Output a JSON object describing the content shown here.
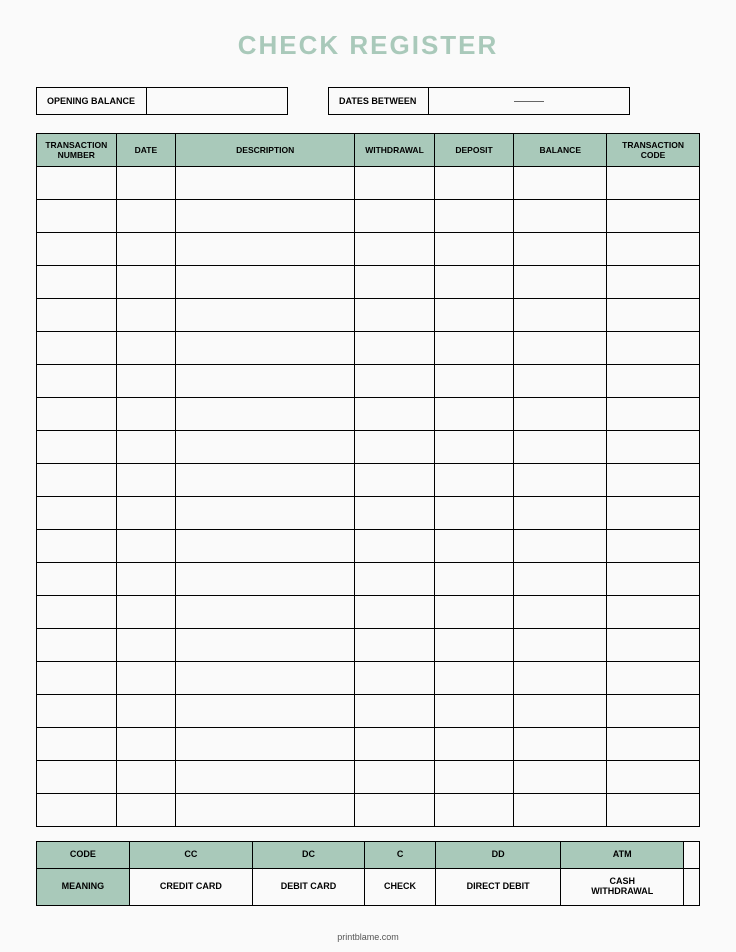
{
  "title": "CHECK REGISTER",
  "colors": {
    "accent": "#a9c9ba",
    "title": "#a9c9ba",
    "border": "#000000",
    "background": "#fafafa",
    "text": "#222222"
  },
  "meta": {
    "opening_balance_label": "OPENING BALANCE",
    "opening_balance_value": "",
    "dates_between_label": "DATES BETWEEN",
    "dates_between_value": ""
  },
  "register_table": {
    "columns": [
      {
        "key": "transaction_number",
        "label": "TRANSACTION NUMBER",
        "width": "12%"
      },
      {
        "key": "date",
        "label": "DATE",
        "width": "9%"
      },
      {
        "key": "description",
        "label": "DESCRIPTION",
        "width": "27%"
      },
      {
        "key": "withdrawal",
        "label": "WITHDRAWAL",
        "width": "12%"
      },
      {
        "key": "deposit",
        "label": "DEPOSIT",
        "width": "12%"
      },
      {
        "key": "balance",
        "label": "BALANCE",
        "width": "14%"
      },
      {
        "key": "transaction_code",
        "label": "TRANSACTION CODE",
        "width": "14%"
      }
    ],
    "row_count": 20,
    "header_bg": "#a9c9ba"
  },
  "legend_table": {
    "row_label_code": "CODE",
    "row_label_meaning": "MEANING",
    "entries": [
      {
        "code": "CC",
        "meaning": "CREDIT CARD"
      },
      {
        "code": "DC",
        "meaning": "DEBIT CARD"
      },
      {
        "code": "C",
        "meaning": "CHECK"
      },
      {
        "code": "DD",
        "meaning": "DIRECT DEBIT"
      },
      {
        "code": "ATM",
        "meaning": "CASH WITHDRAWAL"
      }
    ],
    "label_bg": "#a9c9ba",
    "code_bg": "#a9c9ba",
    "trailing_blank": true
  },
  "layout": {
    "meta_box1_label_width": 110,
    "meta_box1_value_width": 140,
    "meta_box2_label_width": 100,
    "meta_box2_value_width": 200
  },
  "footer": "printblame.com"
}
